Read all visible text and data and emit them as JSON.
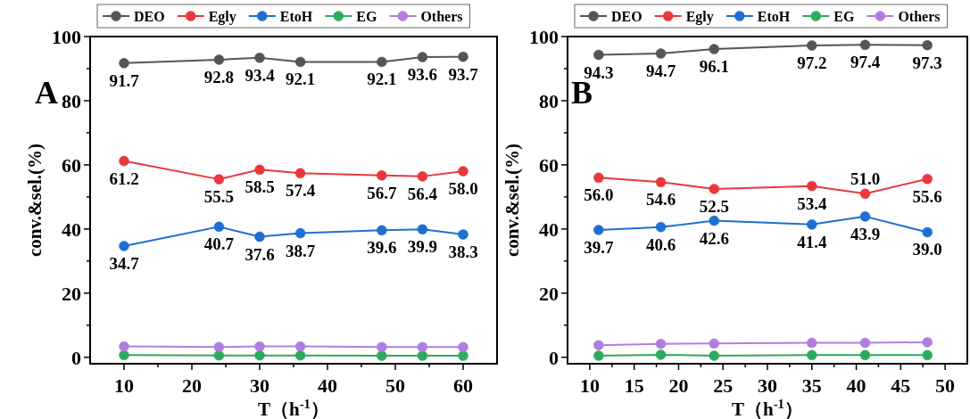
{
  "chart_data": [
    {
      "type": "line",
      "xlabel": "T（h$^{-1}$）",
      "ylabel": "conv.&sel.(%)",
      "annotations": [
        "A"
      ],
      "legend": "top",
      "marker": "circle",
      "grid": false,
      "xlim": [
        5,
        65
      ],
      "ylim": [
        -2,
        100
      ],
      "xticks": [
        10,
        {
          "value": 15,
          "label": null
        },
        20,
        {
          "value": 25,
          "label": null
        },
        30,
        {
          "value": 35,
          "label": null
        },
        40,
        {
          "value": 45,
          "label": null
        },
        50,
        {
          "value": 55,
          "label": null
        },
        60
      ],
      "yticks": [
        0,
        {
          "value": 10,
          "label": null
        },
        20,
        {
          "value": 30,
          "label": null
        },
        40,
        {
          "value": 50,
          "label": null
        },
        60,
        {
          "value": 70,
          "label": null
        },
        80,
        {
          "value": 90,
          "label": null
        },
        100
      ],
      "x": [
        10,
        24,
        30,
        36,
        48,
        54,
        60
      ],
      "series": [
        {
          "name": "DEO",
          "color": "#555555",
          "values": [
            91.7,
            92.8,
            93.4,
            92.1,
            92.1,
            93.6,
            93.7
          ],
          "value_labels": [
            "91.7",
            "92.8",
            "93.4",
            "92.1",
            "92.1",
            "93.6",
            "93.7"
          ]
        },
        {
          "name": "Egly",
          "color": "#e8383d",
          "values": [
            61.2,
            55.5,
            58.5,
            57.4,
            56.7,
            56.4,
            58.0
          ],
          "value_labels": [
            "61.2",
            "55.5",
            "58.5",
            "57.4",
            "56.7",
            "56.4",
            "58.0"
          ]
        },
        {
          "name": "EtoH",
          "color": "#1f6fd1",
          "values": [
            34.7,
            40.7,
            37.6,
            38.7,
            39.6,
            39.9,
            38.3
          ],
          "value_labels": [
            "34.7",
            "40.7",
            "37.6",
            "38.7",
            "39.6",
            "39.9",
            "38.3"
          ]
        },
        {
          "name": "EG",
          "color": "#2eaa5e",
          "values": [
            0.7,
            0.6,
            0.6,
            0.6,
            0.5,
            0.5,
            0.5
          ]
        },
        {
          "name": "Others",
          "color": "#b07ee0",
          "values": [
            3.4,
            3.2,
            3.4,
            3.4,
            3.2,
            3.2,
            3.2
          ]
        }
      ]
    },
    {
      "type": "line",
      "xlabel": "T（h$^{-1}$）",
      "ylabel": "conv.&sel.(%)",
      "annotations": [
        "B"
      ],
      "legend": "top",
      "marker": "circle",
      "grid": false,
      "xlim": [
        7.5,
        52.5
      ],
      "ylim": [
        -2,
        100
      ],
      "xticks": [
        10,
        {
          "value": 12.5,
          "label": null
        },
        15,
        {
          "value": 17.5,
          "label": null
        },
        20,
        {
          "value": 22.5,
          "label": null
        },
        25,
        {
          "value": 27.5,
          "label": null
        },
        30,
        {
          "value": 32.5,
          "label": null
        },
        35,
        {
          "value": 37.5,
          "label": null
        },
        40,
        {
          "value": 42.5,
          "label": null
        },
        45,
        {
          "value": 47.5,
          "label": null
        },
        50
      ],
      "yticks": [
        0,
        {
          "value": 10,
          "label": null
        },
        20,
        {
          "value": 30,
          "label": null
        },
        40,
        {
          "value": 50,
          "label": null
        },
        60,
        {
          "value": 70,
          "label": null
        },
        80,
        {
          "value": 90,
          "label": null
        },
        100
      ],
      "x": [
        11,
        18,
        24,
        35,
        41,
        48
      ],
      "series": [
        {
          "name": "DEO",
          "color": "#555555",
          "values": [
            94.3,
            94.7,
            96.1,
            97.2,
            97.4,
            97.3
          ],
          "value_labels": [
            "94.3",
            "94.7",
            "96.1",
            "97.2",
            "97.4",
            "97.3"
          ]
        },
        {
          "name": "Egly",
          "color": "#e8383d",
          "values": [
            56.0,
            54.6,
            52.5,
            53.4,
            51.0,
            55.6
          ],
          "value_labels": [
            "56.0",
            "54.6",
            "52.5",
            "53.4",
            "51.0",
            "55.6"
          ]
        },
        {
          "name": "EtoH",
          "color": "#1f6fd1",
          "values": [
            39.7,
            40.6,
            42.6,
            41.4,
            43.9,
            39.0
          ],
          "value_labels": [
            "39.7",
            "40.6",
            "42.6",
            "41.4",
            "43.9",
            "39.0"
          ]
        },
        {
          "name": "EG",
          "color": "#2eaa5e",
          "values": [
            0.5,
            0.8,
            0.5,
            0.7,
            0.7,
            0.7
          ]
        },
        {
          "name": "Others",
          "color": "#b07ee0",
          "values": [
            3.8,
            4.2,
            4.3,
            4.5,
            4.5,
            4.7
          ]
        }
      ]
    }
  ]
}
